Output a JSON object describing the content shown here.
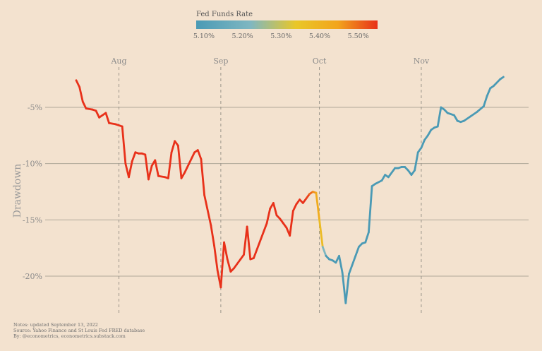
{
  "chart_data": {
    "type": "line",
    "title": "",
    "xlabel": "",
    "ylabel": "Drawdown",
    "x_tick_labels": [
      "Aug",
      "Sep",
      "Oct",
      "Nov"
    ],
    "x_ticks": [
      "2022-08-01",
      "2022-09-01",
      "2022-10-01",
      "2022-11-01"
    ],
    "y_tick_labels": [
      "-5%",
      "-10%",
      "-15%",
      "-20%"
    ],
    "y_ticks": [
      -5,
      -10,
      -15,
      -20
    ],
    "ylim": [
      -22.5,
      -1
    ],
    "xlim": [
      "2022-07-19",
      "2022-11-27"
    ],
    "grid": "horizontal at y ticks; dashed vertical at month starts",
    "color_by": "Fed Funds Rate",
    "colorbar": {
      "title": "Fed Funds Rate",
      "tick_labels": [
        "5.10%",
        "5.20%",
        "5.30%",
        "5.40%",
        "5.50%"
      ],
      "range": [
        5.08,
        5.55
      ],
      "colors": [
        "#4a9ab5",
        "#7fb7c1",
        "#e9c728",
        "#f2a51c",
        "#e8311a"
      ]
    },
    "series": [
      {
        "points": [
          [
            "2022-07-19",
            -2.6,
            5.55
          ],
          [
            "2022-07-20",
            -3.2,
            5.55
          ],
          [
            "2022-07-21",
            -4.5,
            5.55
          ],
          [
            "2022-07-22",
            -5.1,
            5.55
          ],
          [
            "2022-07-24",
            -5.2,
            5.55
          ],
          [
            "2022-07-25",
            -5.3,
            5.55
          ],
          [
            "2022-07-26",
            -5.9,
            5.55
          ],
          [
            "2022-07-27",
            -5.7,
            5.55
          ],
          [
            "2022-07-28",
            -5.5,
            5.55
          ],
          [
            "2022-07-29",
            -6.4,
            5.55
          ],
          [
            "2022-07-31",
            -6.5,
            5.55
          ],
          [
            "2022-08-02",
            -6.7,
            5.55
          ],
          [
            "2022-08-03",
            -10.0,
            5.55
          ],
          [
            "2022-08-04",
            -11.2,
            5.55
          ],
          [
            "2022-08-05",
            -9.8,
            5.55
          ],
          [
            "2022-08-06",
            -9.0,
            5.55
          ],
          [
            "2022-08-07",
            -9.1,
            5.55
          ],
          [
            "2022-08-08",
            -9.1,
            5.55
          ],
          [
            "2022-08-09",
            -9.2,
            5.55
          ],
          [
            "2022-08-10",
            -11.4,
            5.55
          ],
          [
            "2022-08-11",
            -10.2,
            5.55
          ],
          [
            "2022-08-12",
            -9.7,
            5.55
          ],
          [
            "2022-08-13",
            -11.1,
            5.55
          ],
          [
            "2022-08-15",
            -11.2,
            5.55
          ],
          [
            "2022-08-16",
            -11.3,
            5.55
          ],
          [
            "2022-08-17",
            -9.0,
            5.55
          ],
          [
            "2022-08-18",
            -8.0,
            5.55
          ],
          [
            "2022-08-19",
            -8.4,
            5.55
          ],
          [
            "2022-08-20",
            -11.3,
            5.55
          ],
          [
            "2022-08-21",
            -10.8,
            5.55
          ],
          [
            "2022-08-24",
            -9.0,
            5.55
          ],
          [
            "2022-08-25",
            -8.8,
            5.55
          ],
          [
            "2022-08-26",
            -9.6,
            5.55
          ],
          [
            "2022-08-27",
            -12.8,
            5.55
          ],
          [
            "2022-08-29",
            -15.5,
            5.55
          ],
          [
            "2022-08-30",
            -17.3,
            5.55
          ],
          [
            "2022-08-31",
            -19.5,
            5.55
          ],
          [
            "2022-09-01",
            -21.0,
            5.55
          ],
          [
            "2022-09-02",
            -17.0,
            5.55
          ],
          [
            "2022-09-03",
            -18.5,
            5.55
          ],
          [
            "2022-09-04",
            -19.6,
            5.55
          ],
          [
            "2022-09-05",
            -19.3,
            5.55
          ],
          [
            "2022-09-07",
            -18.5,
            5.55
          ],
          [
            "2022-09-08",
            -18.1,
            5.55
          ],
          [
            "2022-09-09",
            -15.6,
            5.55
          ],
          [
            "2022-09-10",
            -18.5,
            5.55
          ],
          [
            "2022-09-11",
            -18.4,
            5.55
          ],
          [
            "2022-09-15",
            -15.3,
            5.55
          ],
          [
            "2022-09-16",
            -14.0,
            5.55
          ],
          [
            "2022-09-17",
            -13.5,
            5.55
          ],
          [
            "2022-09-18",
            -14.6,
            5.55
          ],
          [
            "2022-09-19",
            -14.9,
            5.55
          ],
          [
            "2022-09-20",
            -15.3,
            5.55
          ],
          [
            "2022-09-21",
            -15.7,
            5.55
          ],
          [
            "2022-09-22",
            -16.4,
            5.55
          ],
          [
            "2022-09-23",
            -14.2,
            5.55
          ],
          [
            "2022-09-24",
            -13.6,
            5.55
          ],
          [
            "2022-09-25",
            -13.2,
            5.55
          ],
          [
            "2022-09-26",
            -13.5,
            5.55
          ],
          [
            "2022-09-27",
            -13.1,
            5.55
          ],
          [
            "2022-09-28",
            -12.7,
            5.52
          ],
          [
            "2022-09-29",
            -12.5,
            5.48
          ],
          [
            "2022-09-30",
            -12.6,
            5.44
          ],
          [
            "2022-10-01",
            -15.0,
            5.4
          ],
          [
            "2022-10-02",
            -17.4,
            5.35
          ],
          [
            "2022-10-03",
            -18.2,
            5.08
          ],
          [
            "2022-10-04",
            -18.5,
            5.08
          ],
          [
            "2022-10-05",
            -18.6,
            5.08
          ],
          [
            "2022-10-06",
            -18.8,
            5.08
          ],
          [
            "2022-10-07",
            -18.2,
            5.08
          ],
          [
            "2022-10-08",
            -19.7,
            5.08
          ],
          [
            "2022-10-09",
            -22.4,
            5.08
          ],
          [
            "2022-10-10",
            -19.8,
            5.08
          ],
          [
            "2022-10-11",
            -19.0,
            5.08
          ],
          [
            "2022-10-12",
            -18.2,
            5.08
          ],
          [
            "2022-10-13",
            -17.4,
            5.08
          ],
          [
            "2022-10-14",
            -17.1,
            5.08
          ],
          [
            "2022-10-15",
            -17.0,
            5.08
          ],
          [
            "2022-10-16",
            -16.1,
            5.08
          ],
          [
            "2022-10-17",
            -12.0,
            5.08
          ],
          [
            "2022-10-18",
            -11.8,
            5.08
          ],
          [
            "2022-10-20",
            -11.5,
            5.08
          ],
          [
            "2022-10-21",
            -11.0,
            5.08
          ],
          [
            "2022-10-22",
            -11.2,
            5.08
          ],
          [
            "2022-10-24",
            -10.4,
            5.08
          ],
          [
            "2022-10-25",
            -10.4,
            5.08
          ],
          [
            "2022-10-26",
            -10.3,
            5.08
          ],
          [
            "2022-10-27",
            -10.3,
            5.08
          ],
          [
            "2022-10-28",
            -10.6,
            5.08
          ],
          [
            "2022-10-29",
            -11.0,
            5.08
          ],
          [
            "2022-10-30",
            -10.6,
            5.08
          ],
          [
            "2022-10-31",
            -9.0,
            5.08
          ],
          [
            "2022-11-01",
            -8.6,
            5.08
          ],
          [
            "2022-11-02",
            -7.9,
            5.08
          ],
          [
            "2022-11-03",
            -7.5,
            5.08
          ],
          [
            "2022-11-04",
            -7.0,
            5.08
          ],
          [
            "2022-11-05",
            -6.8,
            5.08
          ],
          [
            "2022-11-06",
            -6.7,
            5.08
          ],
          [
            "2022-11-07",
            -5.0,
            5.08
          ],
          [
            "2022-11-08",
            -5.2,
            5.08
          ],
          [
            "2022-11-09",
            -5.5,
            5.08
          ],
          [
            "2022-11-11",
            -5.7,
            5.08
          ],
          [
            "2022-11-12",
            -6.2,
            5.08
          ],
          [
            "2022-11-13",
            -6.3,
            5.08
          ],
          [
            "2022-11-14",
            -6.2,
            5.08
          ],
          [
            "2022-11-16",
            -5.8,
            5.08
          ],
          [
            "2022-11-18",
            -5.4,
            5.08
          ],
          [
            "2022-11-20",
            -4.9,
            5.08
          ],
          [
            "2022-11-21",
            -4.0,
            5.08
          ],
          [
            "2022-11-22",
            -3.3,
            5.08
          ],
          [
            "2022-11-23",
            -3.1,
            5.08
          ],
          [
            "2022-11-25",
            -2.5,
            5.08
          ],
          [
            "2022-11-26",
            -2.3,
            5.08
          ]
        ]
      }
    ],
    "notes": [
      "Notes: updated September 13, 2022",
      "Source: Yahoo Finance and St Louis Fed FRED database",
      "By: @econometrics, econometrics.substack.com"
    ]
  }
}
